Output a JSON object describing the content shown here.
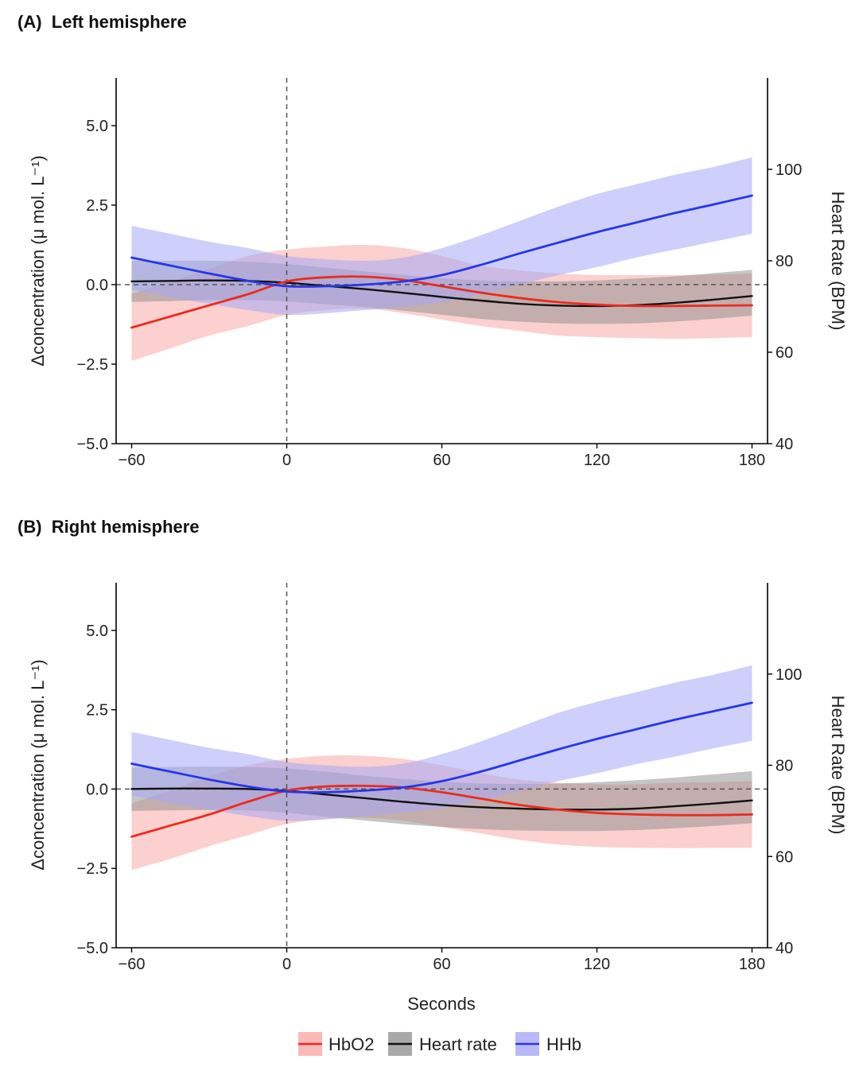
{
  "figure": {
    "x_axis_title": "Seconds",
    "legend": [
      {
        "label": "HbO2",
        "series": "hbo2"
      },
      {
        "label": "Heart rate",
        "series": "hr"
      },
      {
        "label": "HHb",
        "series": "hhb"
      }
    ]
  },
  "colors": {
    "hbo2": "#ee2a1e",
    "hbo2_band": "#f8a9a6",
    "hr": "#111111",
    "hr_band": "#8c8c8c",
    "hhb": "#2637e6",
    "hhb_band": "#a6a8f6"
  },
  "chart_data": [
    {
      "type": "line",
      "title": "(A)  Left hemisphere",
      "xlabel": "Seconds",
      "ylabel": "Δconcentration (μ mol. L⁻¹)",
      "y2label": "Heart Rate (BPM)",
      "xlim": [
        -66,
        186
      ],
      "ylim": [
        -5,
        6.5
      ],
      "y2lim": [
        40,
        120
      ],
      "xticks": [
        -60,
        0,
        60,
        120,
        180
      ],
      "xtick_labels": [
        "−60",
        "0",
        "60",
        "120",
        "180"
      ],
      "yticks": [
        -5,
        -2.5,
        0,
        2.5,
        5
      ],
      "ytick_labels": [
        "−5.0",
        "−2.5",
        "0.0",
        "2.5",
        "5.0"
      ],
      "y2ticks": [
        40,
        60,
        80,
        100
      ],
      "y2tick_labels": [
        "40",
        "60",
        "80",
        "100"
      ],
      "reference_lines": {
        "x": 0,
        "y": 0
      },
      "x": [
        -60,
        -45,
        -30,
        -15,
        0,
        15,
        30,
        45,
        60,
        75,
        90,
        105,
        120,
        135,
        150,
        165,
        180
      ],
      "series": [
        {
          "name": "HbO2",
          "key": "hbo2",
          "axis": "left",
          "values": [
            -1.35,
            -1.0,
            -0.65,
            -0.3,
            0.1,
            0.23,
            0.25,
            0.15,
            -0.05,
            -0.25,
            -0.42,
            -0.55,
            -0.63,
            -0.67,
            -0.67,
            -0.66,
            -0.65
          ],
          "upper": [
            -0.3,
            0.1,
            0.5,
            0.9,
            1.1,
            1.2,
            1.25,
            1.15,
            0.9,
            0.6,
            0.45,
            0.35,
            0.3,
            0.3,
            0.3,
            0.32,
            0.35
          ],
          "lower": [
            -2.4,
            -2.0,
            -1.6,
            -1.3,
            -0.95,
            -0.8,
            -0.75,
            -0.9,
            -1.1,
            -1.3,
            -1.45,
            -1.6,
            -1.65,
            -1.68,
            -1.7,
            -1.68,
            -1.65
          ]
        },
        {
          "name": "Heart rate",
          "key": "hr",
          "axis": "right",
          "values": [
            75.5,
            75.6,
            75.7,
            75.6,
            75.2,
            74.5,
            73.8,
            73.0,
            72.1,
            71.3,
            70.6,
            70.2,
            70.1,
            70.3,
            70.8,
            71.5,
            72.3
          ],
          "upper": [
            80.0,
            80.0,
            80.0,
            79.8,
            79.3,
            78.5,
            77.7,
            76.9,
            76.2,
            75.7,
            75.5,
            75.5,
            75.7,
            76.1,
            76.6,
            77.3,
            78.0
          ],
          "lower": [
            71.0,
            71.2,
            71.4,
            71.4,
            71.1,
            70.5,
            69.9,
            69.1,
            68.2,
            67.3,
            66.7,
            66.3,
            66.2,
            66.3,
            66.7,
            67.3,
            68.0
          ]
        },
        {
          "name": "HHb",
          "key": "hhb",
          "axis": "left",
          "values": [
            0.85,
            0.6,
            0.35,
            0.12,
            -0.05,
            -0.05,
            0.0,
            0.1,
            0.3,
            0.62,
            0.98,
            1.32,
            1.65,
            1.95,
            2.25,
            2.52,
            2.8
          ],
          "upper": [
            1.85,
            1.6,
            1.35,
            1.15,
            0.9,
            0.8,
            0.75,
            0.85,
            1.15,
            1.55,
            2.0,
            2.45,
            2.85,
            3.15,
            3.45,
            3.7,
            4.0
          ],
          "lower": [
            -0.15,
            -0.4,
            -0.6,
            -0.8,
            -0.95,
            -0.9,
            -0.8,
            -0.7,
            -0.55,
            -0.3,
            0.0,
            0.3,
            0.55,
            0.85,
            1.1,
            1.35,
            1.6
          ]
        }
      ]
    },
    {
      "type": "line",
      "title": "(B)  Right hemisphere",
      "xlabel": "Seconds",
      "ylabel": "Δconcentration (μ mol. L⁻¹)",
      "y2label": "Heart Rate (BPM)",
      "xlim": [
        -66,
        186
      ],
      "ylim": [
        -5,
        6.5
      ],
      "y2lim": [
        40,
        120
      ],
      "xticks": [
        -60,
        0,
        60,
        120,
        180
      ],
      "xtick_labels": [
        "−60",
        "0",
        "60",
        "120",
        "180"
      ],
      "yticks": [
        -5,
        -2.5,
        0,
        2.5,
        5
      ],
      "ytick_labels": [
        "−5.0",
        "−2.5",
        "0.0",
        "2.5",
        "5.0"
      ],
      "y2ticks": [
        40,
        60,
        80,
        100
      ],
      "y2tick_labels": [
        "40",
        "60",
        "80",
        "100"
      ],
      "reference_lines": {
        "x": 0,
        "y": 0
      },
      "x": [
        -60,
        -45,
        -30,
        -15,
        0,
        15,
        30,
        45,
        60,
        75,
        90,
        105,
        120,
        135,
        150,
        165,
        180
      ],
      "series": [
        {
          "name": "HbO2",
          "key": "hbo2",
          "axis": "left",
          "values": [
            -1.5,
            -1.15,
            -0.8,
            -0.4,
            -0.05,
            0.08,
            0.1,
            0.05,
            -0.1,
            -0.3,
            -0.5,
            -0.65,
            -0.75,
            -0.8,
            -0.82,
            -0.82,
            -0.8
          ],
          "upper": [
            -0.45,
            -0.05,
            0.4,
            0.75,
            0.95,
            1.05,
            1.05,
            0.95,
            0.75,
            0.5,
            0.3,
            0.2,
            0.15,
            0.15,
            0.2,
            0.22,
            0.25
          ],
          "lower": [
            -2.55,
            -2.2,
            -1.8,
            -1.45,
            -1.1,
            -0.95,
            -0.9,
            -1.0,
            -1.2,
            -1.4,
            -1.6,
            -1.75,
            -1.82,
            -1.85,
            -1.86,
            -1.85,
            -1.85
          ]
        },
        {
          "name": "Heart rate",
          "key": "hr",
          "axis": "right",
          "values": [
            74.8,
            74.9,
            74.9,
            74.8,
            74.4,
            73.6,
            72.8,
            72.0,
            71.3,
            70.8,
            70.5,
            70.3,
            70.3,
            70.5,
            71.0,
            71.6,
            72.3
          ],
          "upper": [
            79.5,
            79.6,
            79.7,
            79.6,
            79.3,
            78.6,
            77.7,
            77.0,
            76.4,
            76.0,
            75.9,
            76.0,
            76.3,
            76.7,
            77.3,
            78.0,
            78.7
          ],
          "lower": [
            70.0,
            70.1,
            70.2,
            70.1,
            69.6,
            68.7,
            67.9,
            67.1,
            66.5,
            66.0,
            65.7,
            65.6,
            65.6,
            65.8,
            66.2,
            66.7,
            67.3
          ]
        },
        {
          "name": "HHb",
          "key": "hhb",
          "axis": "left",
          "values": [
            0.8,
            0.55,
            0.3,
            0.08,
            -0.08,
            -0.1,
            -0.05,
            0.05,
            0.25,
            0.55,
            0.9,
            1.25,
            1.58,
            1.88,
            2.18,
            2.45,
            2.72
          ],
          "upper": [
            1.8,
            1.55,
            1.3,
            1.1,
            0.85,
            0.75,
            0.7,
            0.8,
            1.1,
            1.5,
            1.95,
            2.4,
            2.75,
            3.05,
            3.35,
            3.6,
            3.9
          ],
          "lower": [
            -0.2,
            -0.45,
            -0.65,
            -0.85,
            -1.0,
            -0.95,
            -0.85,
            -0.75,
            -0.6,
            -0.35,
            -0.05,
            0.25,
            0.5,
            0.78,
            1.02,
            1.28,
            1.52
          ]
        }
      ]
    }
  ]
}
